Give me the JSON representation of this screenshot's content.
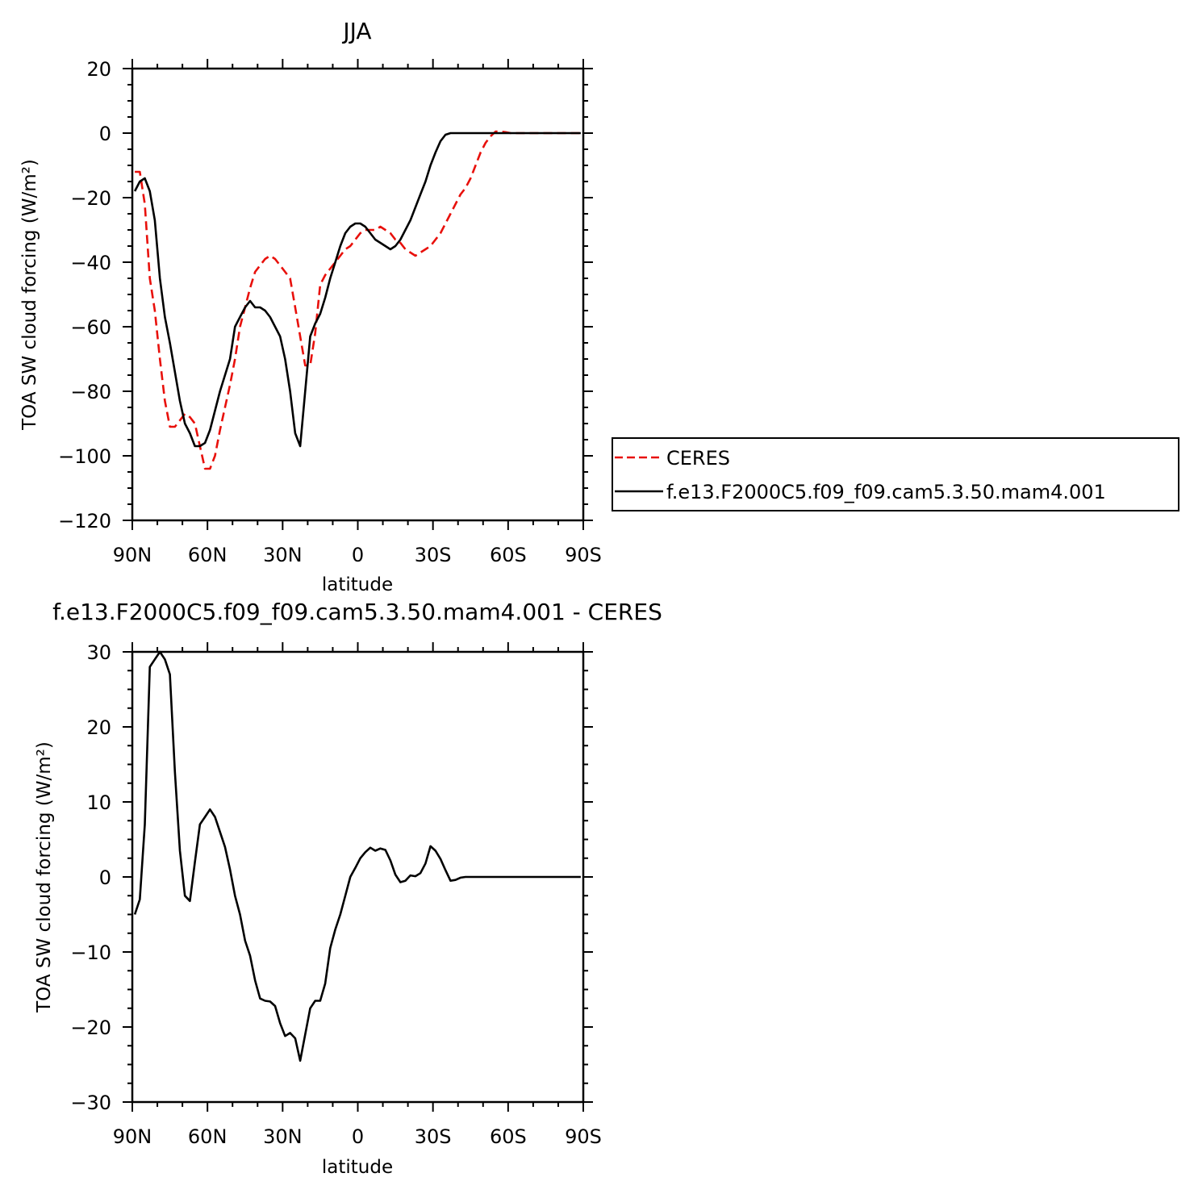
{
  "chart_data": [
    {
      "type": "line",
      "title": "JJA",
      "xlabel": "latitude",
      "ylabel": "TOA SW cloud forcing (W/m²)",
      "xlim": [
        90,
        -90
      ],
      "ylim": [
        -120,
        20
      ],
      "xticks": [
        {
          "value": 90,
          "label": "90N"
        },
        {
          "value": 60,
          "label": "60N"
        },
        {
          "value": 30,
          "label": "30N"
        },
        {
          "value": 0,
          "label": "0"
        },
        {
          "value": -30,
          "label": "30S"
        },
        {
          "value": -60,
          "label": "60S"
        },
        {
          "value": -90,
          "label": "90S"
        }
      ],
      "yticks": [
        20,
        0,
        -20,
        -40,
        -60,
        -80,
        -100,
        -120
      ],
      "legend_position": "right",
      "series": [
        {
          "name": "CERES",
          "color": "#e8100b",
          "dash": "dashed",
          "x": [
            89,
            87,
            85,
            83,
            81,
            79,
            77,
            75,
            73,
            71,
            69,
            67,
            65,
            63,
            61,
            59,
            57,
            55,
            53,
            51,
            49,
            47,
            45,
            43,
            41,
            39,
            37,
            35,
            33,
            31,
            29,
            27,
            25,
            23,
            21,
            19,
            17,
            15,
            13,
            11,
            9,
            7,
            5,
            3,
            1,
            -1,
            -3,
            -5,
            -7,
            -9,
            -11,
            -13,
            -15,
            -17,
            -19,
            -21,
            -23,
            -25,
            -27,
            -29,
            -31,
            -33,
            -35,
            -37,
            -39,
            -41,
            -43,
            -45,
            -47,
            -49,
            -51,
            -53,
            -55,
            -57,
            -59,
            -61,
            -63,
            -65,
            -67,
            -69,
            -71,
            -73,
            -75,
            -77,
            -79,
            -81,
            -83,
            -85,
            -87,
            -89
          ],
          "y": [
            -12,
            -12,
            -22,
            -45,
            -55,
            -70,
            -83,
            -91,
            -91,
            -89,
            -87,
            -88,
            -90,
            -97,
            -104,
            -104,
            -100,
            -92,
            -85,
            -78,
            -70,
            -60,
            -54,
            -48,
            -43,
            -41,
            -39,
            -38,
            -39,
            -41,
            -43,
            -45,
            -54,
            -63,
            -72,
            -72,
            -62,
            -47,
            -44,
            -42,
            -40,
            -38,
            -36,
            -35,
            -33,
            -31,
            -30,
            -30,
            -30,
            -29,
            -30,
            -31,
            -33,
            -34,
            -36,
            -37,
            -38,
            -37,
            -36,
            -35,
            -33,
            -31,
            -28,
            -25,
            -22,
            -19,
            -17,
            -14,
            -10,
            -6,
            -3,
            -1,
            0.5,
            0.5,
            0.3,
            0,
            0,
            0,
            0,
            0,
            0,
            0,
            0,
            0,
            0,
            0,
            0,
            0,
            0,
            0
          ]
        },
        {
          "name": "f.e13.F2000C5.f09_f09.cam5.3.50.mam4.001",
          "color": "#000000",
          "dash": "solid",
          "x": [
            89,
            87,
            85,
            83,
            81,
            79,
            77,
            75,
            73,
            71,
            69,
            67,
            65,
            63,
            61,
            59,
            57,
            55,
            53,
            51,
            49,
            47,
            45,
            43,
            41,
            39,
            37,
            35,
            33,
            31,
            29,
            27,
            25,
            23,
            21,
            19,
            17,
            15,
            13,
            11,
            9,
            7,
            5,
            3,
            1,
            -1,
            -3,
            -5,
            -7,
            -9,
            -11,
            -13,
            -15,
            -17,
            -19,
            -21,
            -23,
            -25,
            -27,
            -29,
            -31,
            -33,
            -35,
            -37,
            -39,
            -41,
            -43,
            -45,
            -47,
            -49,
            -51,
            -53,
            -55,
            -57,
            -59,
            -61,
            -63,
            -65,
            -67,
            -69,
            -71,
            -73,
            -75,
            -77,
            -79,
            -81,
            -83,
            -85,
            -87,
            -89
          ],
          "y": [
            -18,
            -15,
            -14,
            -18,
            -27,
            -45,
            -57,
            -65,
            -74,
            -83,
            -90,
            -93,
            -97,
            -97,
            -96,
            -92,
            -86,
            -80,
            -75,
            -70,
            -60,
            -57,
            -54,
            -52,
            -54,
            -54,
            -55,
            -57,
            -60,
            -63,
            -70,
            -80,
            -93,
            -97,
            -80,
            -63,
            -59,
            -56,
            -51,
            -45,
            -40,
            -35,
            -31,
            -29,
            -28,
            -28,
            -29,
            -31,
            -33,
            -34,
            -35,
            -36,
            -35,
            -33,
            -30,
            -27,
            -23,
            -19,
            -15,
            -10,
            -6,
            -2.5,
            -0.5,
            0,
            0,
            0,
            0,
            0,
            0,
            0,
            0,
            0,
            0,
            0,
            0,
            0,
            0,
            0,
            0,
            0,
            0,
            0,
            0,
            0,
            0,
            0,
            0,
            0,
            0,
            0
          ]
        }
      ]
    },
    {
      "type": "line",
      "title": "f.e13.F2000C5.f09_f09.cam5.3.50.mam4.001 - CERES",
      "xlabel": "latitude",
      "ylabel": "TOA SW cloud forcing (W/m²)",
      "xlim": [
        90,
        -90
      ],
      "ylim": [
        -30,
        30
      ],
      "xticks": [
        {
          "value": 90,
          "label": "90N"
        },
        {
          "value": 60,
          "label": "60N"
        },
        {
          "value": 30,
          "label": "30N"
        },
        {
          "value": 0,
          "label": "0"
        },
        {
          "value": -30,
          "label": "30S"
        },
        {
          "value": -60,
          "label": "60S"
        },
        {
          "value": -90,
          "label": "90S"
        }
      ],
      "yticks": [
        30,
        20,
        10,
        0,
        -10,
        -20,
        -30
      ],
      "series": [
        {
          "color": "#000000",
          "dash": "solid",
          "x": [
            89,
            87,
            85,
            83,
            81,
            79,
            77,
            75,
            73,
            71,
            69,
            67,
            65,
            63,
            61,
            59,
            57,
            55,
            53,
            51,
            49,
            47,
            45,
            43,
            41,
            39,
            37,
            35,
            33,
            31,
            29,
            27,
            25,
            23,
            21,
            19,
            17,
            15,
            13,
            11,
            9,
            7,
            5,
            3,
            1,
            -1,
            -3,
            -5,
            -7,
            -9,
            -11,
            -13,
            -15,
            -17,
            -19,
            -21,
            -23,
            -25,
            -27,
            -29,
            -31,
            -33,
            -35,
            -37,
            -39,
            -41,
            -43,
            -45,
            -47,
            -49,
            -51,
            -53,
            -55,
            -57,
            -59,
            -61,
            -63,
            -65,
            -67,
            -69,
            -71,
            -73,
            -75,
            -77,
            -79,
            -81,
            -83,
            -85,
            -87,
            -89
          ],
          "y": [
            -5,
            -3,
            7,
            28,
            29,
            30,
            29,
            27,
            14,
            3.5,
            -2.5,
            -3.2,
            2,
            7,
            8,
            9,
            8,
            6,
            4,
            1,
            -2.5,
            -5,
            -8.5,
            -10.5,
            -13.8,
            -16.2,
            -16.5,
            -16.6,
            -17.2,
            -19.5,
            -21.2,
            -20.8,
            -21.5,
            -24.5,
            -21,
            -17.5,
            -16.5,
            -16.5,
            -14.2,
            -9.5,
            -7,
            -5,
            -2.5,
            0,
            1.2,
            2.5,
            3.3,
            3.9,
            3.5,
            3.8,
            3.6,
            2.2,
            0.3,
            -0.7,
            -0.5,
            0.2,
            0.1,
            0.5,
            1.8,
            4.1,
            3.5,
            2.4,
            0.9,
            -0.5,
            -0.4,
            -0.1,
            0,
            0,
            0,
            0,
            0,
            0,
            0,
            0,
            0,
            0,
            0,
            0,
            0,
            0,
            0,
            0,
            0,
            0,
            0,
            0,
            0,
            0,
            0,
            0
          ]
        }
      ]
    }
  ]
}
